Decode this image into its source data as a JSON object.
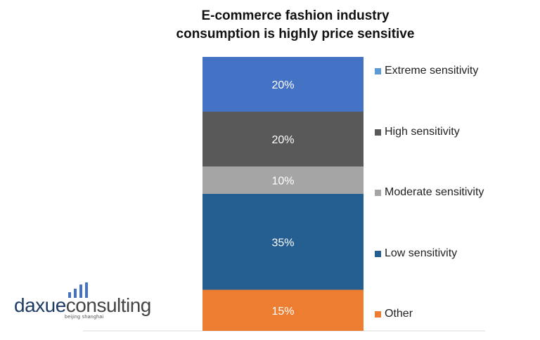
{
  "title_lines": [
    "E-commerce fashion industry",
    "consumption is highly price sensitive"
  ],
  "chart_data": {
    "type": "bar",
    "stacked": true,
    "series": [
      {
        "name": "Extreme sensitivity",
        "value": 20,
        "label": "20%",
        "color": "#4472c4"
      },
      {
        "name": "High sensitivity",
        "value": 20,
        "label": "20%",
        "color": "#595959"
      },
      {
        "name": "Moderate sensitivity",
        "value": 10,
        "label": "10%",
        "color": "#a5a5a5"
      },
      {
        "name": "Low sensitivity",
        "value": 35,
        "label": "35%",
        "color": "#255e91"
      },
      {
        "name": "Other",
        "value": 15,
        "label": "15%",
        "color": "#ed7d31"
      }
    ],
    "ylim": [
      0,
      100
    ],
    "legend": "right"
  },
  "legend_swatch_colors": [
    "#5b9bd5",
    "#595959",
    "#a5a5a5",
    "#255e91",
    "#ed7d31"
  ],
  "logo": {
    "part1": "daxue",
    "part2": "consulting",
    "subtitle": "beijing shanghai",
    "bar_color": "#4472c4"
  }
}
